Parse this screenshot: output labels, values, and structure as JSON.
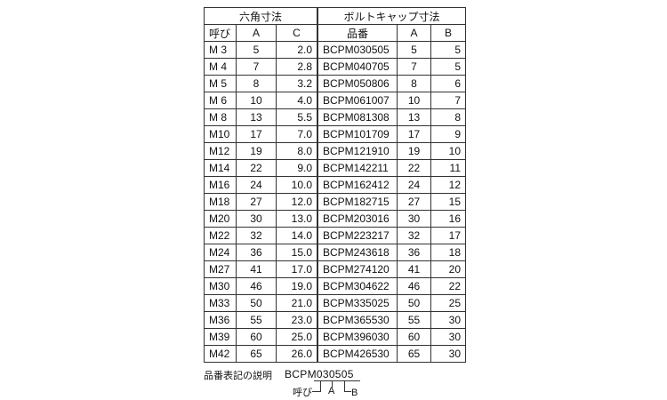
{
  "header": {
    "group1": "六角寸法",
    "group2": "ボルトキャップ寸法",
    "col_size": "呼び",
    "col_a": "A",
    "col_c": "C",
    "col_part": "品番",
    "col_a2": "A",
    "col_b": "B"
  },
  "rows": [
    [
      "M 3",
      "5",
      "2.0",
      "BCPM030505",
      "5",
      "5"
    ],
    [
      "M 4",
      "7",
      "2.8",
      "BCPM040705",
      "7",
      "5"
    ],
    [
      "M 5",
      "8",
      "3.2",
      "BCPM050806",
      "8",
      "6"
    ],
    [
      "M 6",
      "10",
      "4.0",
      "BCPM061007",
      "10",
      "7"
    ],
    [
      "M 8",
      "13",
      "5.5",
      "BCPM081308",
      "13",
      "8"
    ],
    [
      "M10",
      "17",
      "7.0",
      "BCPM101709",
      "17",
      "9"
    ],
    [
      "M12",
      "19",
      "8.0",
      "BCPM121910",
      "19",
      "10"
    ],
    [
      "M14",
      "22",
      "9.0",
      "BCPM142211",
      "22",
      "11"
    ],
    [
      "M16",
      "24",
      "10.0",
      "BCPM162412",
      "24",
      "12"
    ],
    [
      "M18",
      "27",
      "12.0",
      "BCPM182715",
      "27",
      "15"
    ],
    [
      "M20",
      "30",
      "13.0",
      "BCPM203016",
      "30",
      "16"
    ],
    [
      "M22",
      "32",
      "14.0",
      "BCPM223217",
      "32",
      "17"
    ],
    [
      "M24",
      "36",
      "15.0",
      "BCPM243618",
      "36",
      "18"
    ],
    [
      "M27",
      "41",
      "17.0",
      "BCPM274120",
      "41",
      "20"
    ],
    [
      "M30",
      "46",
      "19.0",
      "BCPM304622",
      "46",
      "22"
    ],
    [
      "M33",
      "50",
      "21.0",
      "BCPM335025",
      "50",
      "25"
    ],
    [
      "M36",
      "55",
      "23.0",
      "BCPM365530",
      "55",
      "30"
    ],
    [
      "M39",
      "60",
      "25.0",
      "BCPM396030",
      "60",
      "30"
    ],
    [
      "M42",
      "65",
      "26.0",
      "BCPM426530",
      "65",
      "30"
    ]
  ],
  "legend": {
    "title": "品番表記の説明",
    "example": "BCPM030505",
    "label_size": "呼び",
    "label_a": "A",
    "label_b": "B"
  }
}
